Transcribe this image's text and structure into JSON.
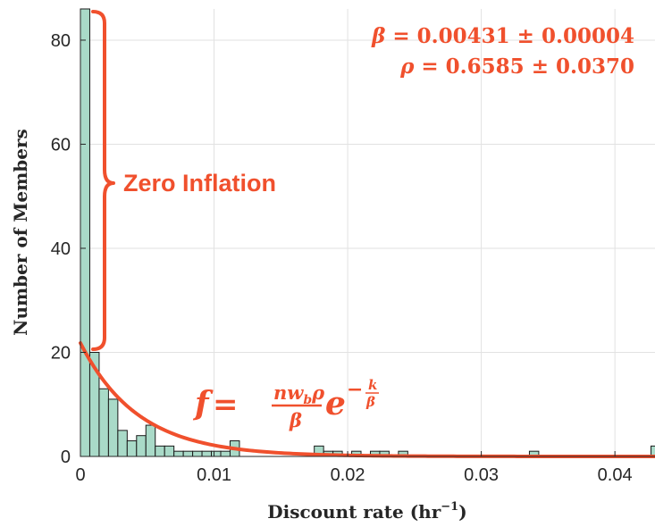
{
  "chart_data": {
    "type": "bar",
    "title": "",
    "xlabel": "Discount rate (hr",
    "xlabel_sup": "−1",
    "xlabel_end": ")",
    "ylabel": "Number of Members",
    "xlim": [
      0,
      0.043
    ],
    "ylim": [
      0,
      86
    ],
    "xticks": [
      0,
      0.01,
      0.02,
      0.03,
      0.04
    ],
    "xtick_labels": [
      "0",
      "0.01",
      "0.02",
      "0.03",
      "0.04"
    ],
    "yticks": [
      0,
      20,
      40,
      60,
      80
    ],
    "ytick_labels": [
      "0",
      "20",
      "40",
      "60",
      "80"
    ],
    "grid": true,
    "bin_width": 0.0007,
    "bin_starts": [
      0,
      0.0007,
      0.0014,
      0.0021,
      0.0028,
      0.0035,
      0.0042,
      0.0049,
      0.0056,
      0.0063,
      0.007,
      0.0077,
      0.0084,
      0.0091,
      0.0098,
      0.0105,
      0.0112,
      0.0175,
      0.0182,
      0.0189,
      0.0203,
      0.0217,
      0.0224,
      0.0238,
      0.0336,
      0.0427
    ],
    "counts": [
      86,
      20,
      13,
      11,
      5,
      3,
      4,
      6,
      2,
      2,
      1,
      1,
      1,
      1,
      1,
      1,
      3,
      2,
      1,
      1,
      1,
      1,
      1,
      1,
      1,
      2
    ],
    "bar_color": "#a9dac8",
    "fit": {
      "type": "line",
      "model": "exponential",
      "scale": 21.8,
      "beta": 0.00431,
      "color": "#f0502d"
    }
  },
  "annotations": {
    "beta_sym": "β",
    "beta_rest": " = 0.00431 ± 0.00004",
    "rho_sym": "ρ",
    "rho_rest": " = 0.6585 ± 0.0370",
    "zero_inflation": "Zero Inflation",
    "formula_lhs": "f",
    "formula_eq": " = ",
    "formula_num": "nw",
    "formula_num_sub": "b",
    "formula_num_rho": "ρ",
    "formula_den": "β",
    "formula_e": "e",
    "formula_exp": "−",
    "formula_exp_num": "k",
    "formula_exp_den": "β",
    "color": "#f0502d"
  }
}
